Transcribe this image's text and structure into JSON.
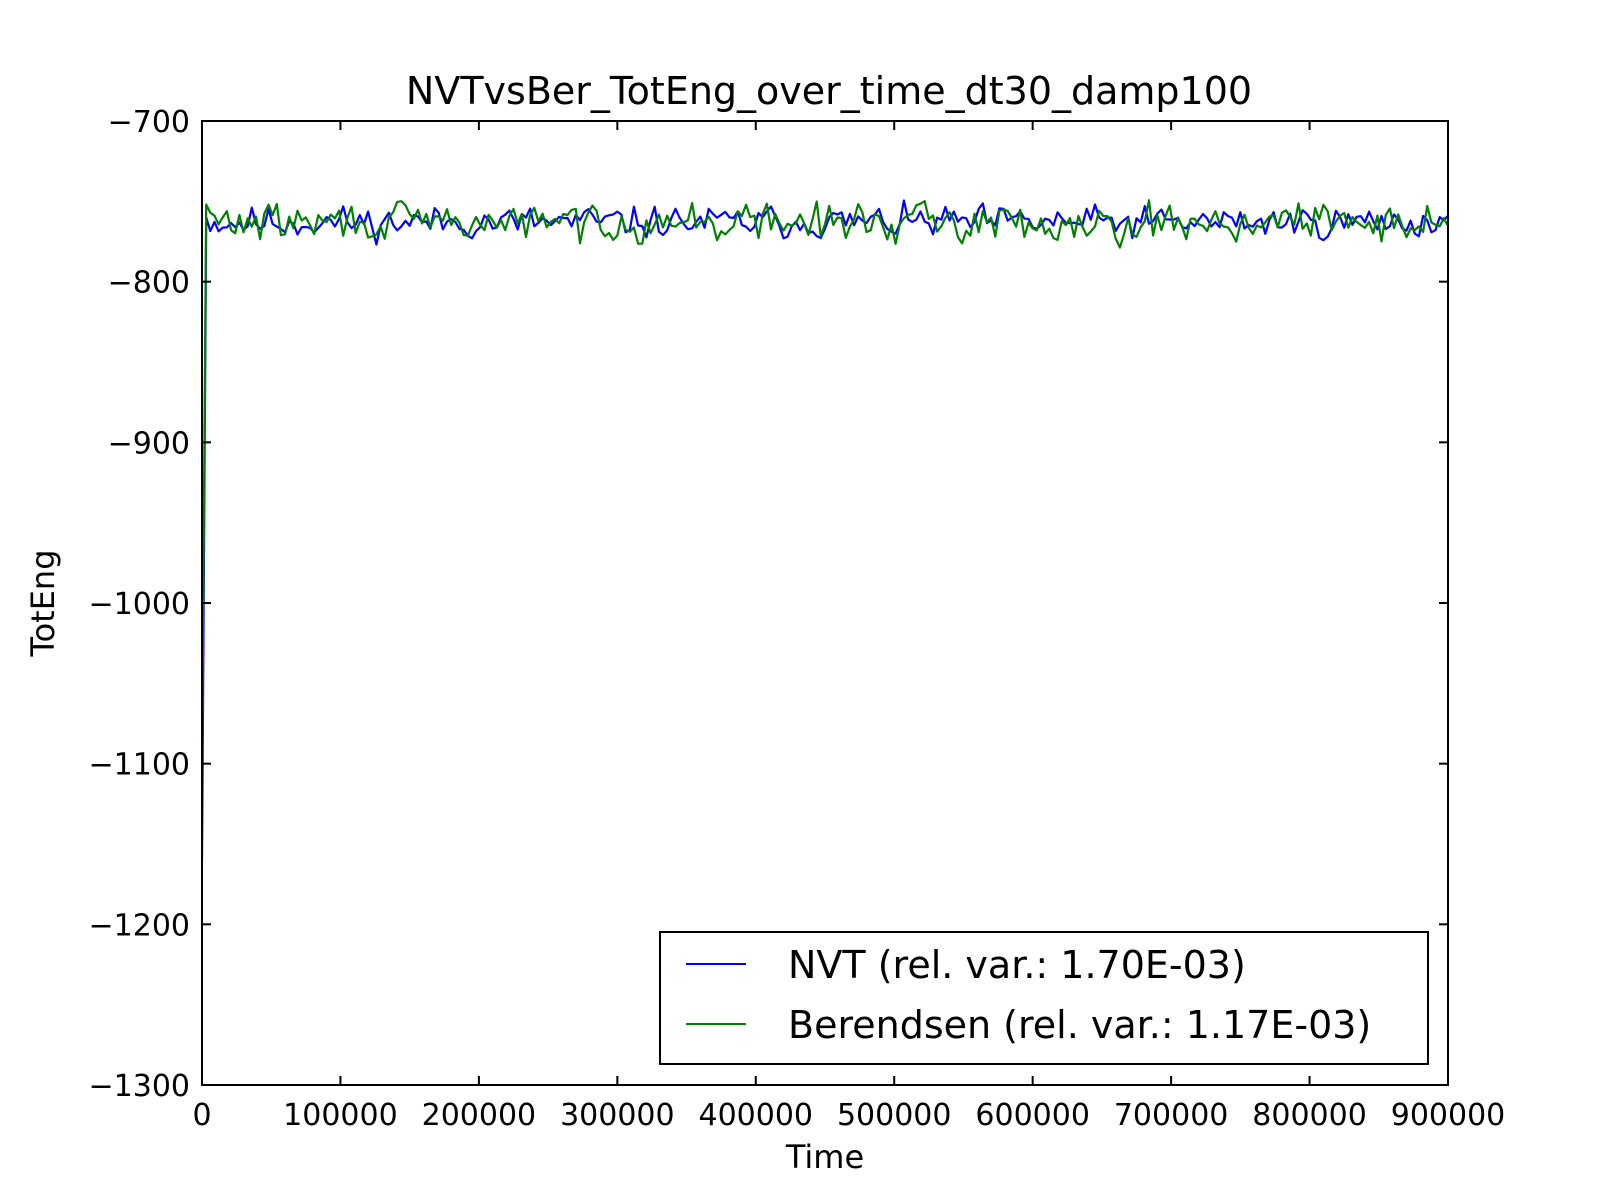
{
  "chart_data": {
    "type": "line",
    "title": "NVTvsBer_TotEng_over_time_dt30_damp100",
    "xlabel": "Time",
    "ylabel": "TotEng",
    "xlim": [
      0,
      900000
    ],
    "ylim": [
      -1300,
      -700
    ],
    "xticks": [
      0,
      100000,
      200000,
      300000,
      400000,
      500000,
      600000,
      700000,
      800000,
      900000
    ],
    "xtick_labels": [
      "0",
      "100000",
      "200000",
      "300000",
      "400000",
      "500000",
      "600000",
      "700000",
      "800000",
      "900000"
    ],
    "yticks": [
      -1300,
      -1200,
      -1100,
      -1000,
      -900,
      -800,
      -700
    ],
    "ytick_labels": [
      "−1300",
      "−1200",
      "−1100",
      "−1000",
      "−900",
      "−800",
      "−700"
    ],
    "grid": false,
    "legend_position": "lower-right",
    "x_step": 3000,
    "series": [
      {
        "name": "NVT (rel. var.: 1.70E-03)",
        "color": "#0000ff",
        "start_values": [
          -1160,
          -760
        ],
        "baseline": -763,
        "noise_amplitude": 6,
        "seed": 11
      },
      {
        "name": "Berendsen (rel. var.: 1.17E-03)",
        "color": "#008000",
        "start_values": [
          -1100,
          -752
        ],
        "baseline": -763,
        "noise_amplitude": 7,
        "seed": 29
      }
    ]
  }
}
